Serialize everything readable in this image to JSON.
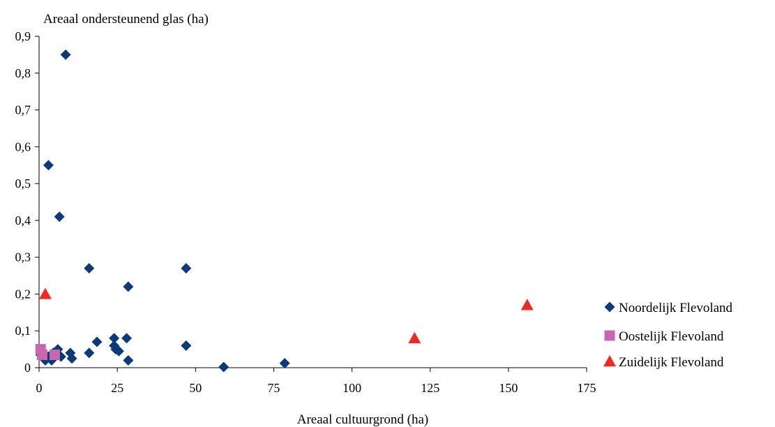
{
  "chart_data": {
    "type": "scatter",
    "title": "",
    "ylabel": "Areaal ondersteunend glas (ha)",
    "xlabel": "Areaal cultuurgrond (ha)",
    "xlim": [
      0,
      175
    ],
    "ylim": [
      0,
      0.9
    ],
    "x_ticks": [
      0,
      25,
      50,
      75,
      100,
      125,
      150,
      175
    ],
    "x_tick_labels": [
      "0",
      "25",
      "50",
      "75",
      "100",
      "125",
      "150",
      "175"
    ],
    "y_ticks": [
      0,
      0.1,
      0.2,
      0.3,
      0.4,
      0.5,
      0.6,
      0.7,
      0.8,
      0.9
    ],
    "y_tick_labels": [
      "0",
      "0,1",
      "0,2",
      "0,3",
      "0,4",
      "0,5",
      "0,6",
      "0,7",
      "0,8",
      "0,9"
    ],
    "grid": false,
    "legend_position": "right",
    "series": [
      {
        "name": "Noordelijk Flevoland",
        "marker": "diamond",
        "color": "#0b3a78",
        "points": [
          [
            0.5,
            0.035
          ],
          [
            2,
            0.02
          ],
          [
            3,
            0.03
          ],
          [
            4,
            0.02
          ],
          [
            4.5,
            0.04
          ],
          [
            5,
            0.03
          ],
          [
            6,
            0.05
          ],
          [
            7,
            0.03
          ],
          [
            10,
            0.04
          ],
          [
            10.5,
            0.025
          ],
          [
            16,
            0.04
          ],
          [
            18.5,
            0.07
          ],
          [
            24,
            0.08
          ],
          [
            24,
            0.06
          ],
          [
            24.5,
            0.05
          ],
          [
            25.5,
            0.045
          ],
          [
            28,
            0.08
          ],
          [
            28.5,
            0.02
          ],
          [
            47,
            0.06
          ],
          [
            59,
            0.002
          ],
          [
            78.5,
            0.012
          ],
          [
            8.5,
            0.85
          ],
          [
            3,
            0.55
          ],
          [
            6.5,
            0.41
          ],
          [
            16,
            0.27
          ],
          [
            47,
            0.27
          ],
          [
            28.5,
            0.22
          ]
        ]
      },
      {
        "name": "Oostelijk Flevoland",
        "marker": "square",
        "color": "#c966b0",
        "points": [
          [
            0.5,
            0.05
          ],
          [
            1,
            0.035
          ],
          [
            5,
            0.035
          ]
        ]
      },
      {
        "name": "Zuidelijk Flevoland",
        "marker": "triangle",
        "color": "#ee2b1f",
        "points": [
          [
            2,
            0.2
          ],
          [
            120,
            0.08
          ],
          [
            156,
            0.17
          ]
        ]
      }
    ]
  }
}
